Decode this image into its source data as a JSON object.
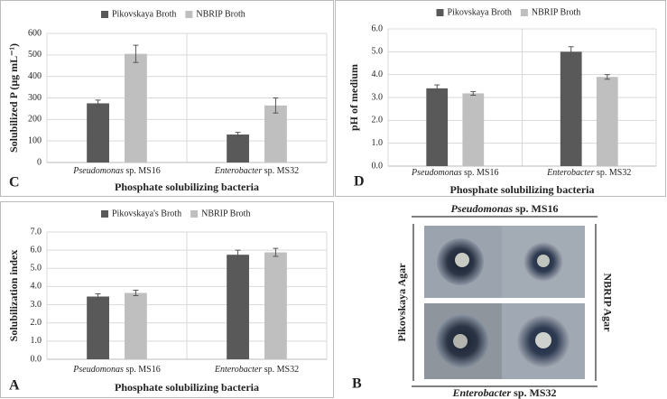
{
  "chart_data": [
    {
      "type": "bar",
      "panel": "C",
      "y_label": "Solubilized P (μg mL⁻¹)",
      "x_label": "Phosphate solubilizing bacteria",
      "categories": [
        "Pseudomonas sp. MS16",
        "Enterobacter sp. MS32"
      ],
      "series": [
        {
          "name": "Pikovskaya Broth",
          "color": "#595959",
          "values": [
            275,
            130
          ],
          "errors": [
            15,
            10
          ]
        },
        {
          "name": "NBRIP Broth",
          "color": "#bfbfbf",
          "values": [
            505,
            265
          ],
          "errors": [
            40,
            35
          ]
        }
      ],
      "ylim": [
        0,
        600
      ],
      "yticks": [
        0,
        100,
        200,
        300,
        400,
        500,
        600
      ],
      "grid": true
    },
    {
      "type": "bar",
      "panel": "D",
      "y_label": "pH of medium",
      "x_label": "Phosphate solubilizing bacteria",
      "categories": [
        "Pseudomonas sp. MS16",
        "Enterobacter sp. MS32"
      ],
      "series": [
        {
          "name": "Pikovskaya Broth",
          "color": "#595959",
          "values": [
            3.4,
            5.0
          ],
          "errors": [
            0.15,
            0.22
          ]
        },
        {
          "name": "NBRIP Broth",
          "color": "#bfbfbf",
          "values": [
            3.18,
            3.9
          ],
          "errors": [
            0.08,
            0.1
          ]
        }
      ],
      "ylim": [
        0,
        6
      ],
      "yticks": [
        {
          "value": 0,
          "label": "0.0"
        },
        {
          "value": 1,
          "label": "1.0"
        },
        {
          "value": 2,
          "label": "2.0"
        },
        {
          "value": 3,
          "label": "3.0"
        },
        {
          "value": 4,
          "label": "4.0"
        },
        {
          "value": 5,
          "label": "5.0"
        },
        {
          "value": 6,
          "label": "6.0"
        }
      ],
      "grid": true
    },
    {
      "type": "bar",
      "panel": "A",
      "y_label": "Solubilization index",
      "x_label": "Phosphate solubilizing bacteria",
      "categories": [
        "Pseudomonas sp. MS16",
        "Enterobacter sp. MS32"
      ],
      "series": [
        {
          "name": "Pikovskaya's Broth",
          "color": "#595959",
          "values": [
            3.45,
            5.75
          ],
          "errors": [
            0.15,
            0.25
          ]
        },
        {
          "name": "NBRIP Broth",
          "color": "#bfbfbf",
          "values": [
            3.65,
            5.88
          ],
          "errors": [
            0.15,
            0.22
          ]
        }
      ],
      "ylim": [
        0,
        7
      ],
      "yticks": [
        {
          "value": 0,
          "label": "0.0"
        },
        {
          "value": 1,
          "label": "1.0"
        },
        {
          "value": 2,
          "label": "2.0"
        },
        {
          "value": 3,
          "label": "3.0"
        },
        {
          "value": 4,
          "label": "4.0"
        },
        {
          "value": 5,
          "label": "5.0"
        },
        {
          "value": 6,
          "label": "6.0"
        },
        {
          "value": 7,
          "label": "7.0"
        }
      ],
      "grid": true
    }
  ],
  "photo_panel": {
    "panel": "B",
    "top": "Pseudomonas sp. MS16",
    "bottom": "Enterobacter sp. MS32",
    "left": "Pikovskaya Agar",
    "right": "NBRIP Agar"
  }
}
